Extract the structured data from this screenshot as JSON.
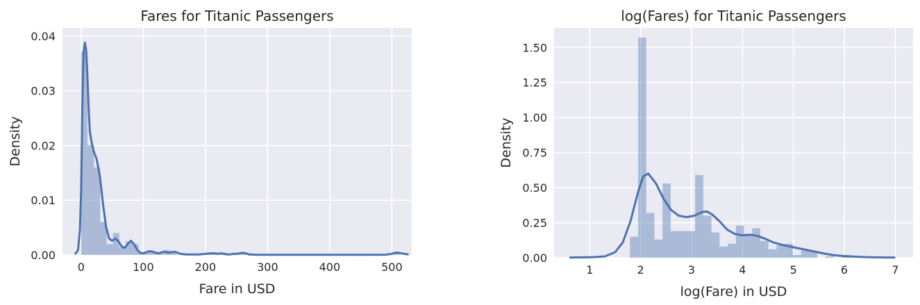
{
  "chart_data": [
    {
      "type": "histogram-kde",
      "title": "Fares for Titanic Passengers",
      "xlabel": "Fare in USD",
      "ylabel": "Density",
      "xlim": [
        -30,
        532
      ],
      "ylim": [
        0,
        0.0415
      ],
      "xticks": [
        0,
        100,
        200,
        300,
        400,
        500
      ],
      "yticks": [
        0.0,
        0.01,
        0.02,
        0.03,
        0.04
      ],
      "ytick_labels": [
        "0.00",
        "0.01",
        "0.02",
        "0.03",
        "0.04"
      ],
      "grid": true,
      "bar_color": "#4c72b0",
      "line_color": "#4c72b0",
      "hist": {
        "edges": [
          0,
          10.25,
          20.5,
          30.75,
          41,
          51.25,
          61.5,
          71.75,
          82,
          92.25,
          102.5,
          112.75,
          123,
          133.25,
          143.5,
          153.75,
          164,
          174.25,
          184.5,
          194.75,
          205,
          215.25,
          225.5,
          235.75,
          246,
          256.25,
          266.5,
          276.75,
          287,
          297.25,
          307.5,
          317.75,
          328,
          338.25,
          348.5,
          358.75,
          369,
          379.25,
          389.5,
          399.75,
          410,
          420.25,
          430.5,
          440.75,
          451,
          461.25,
          471.5,
          481.75,
          492,
          502.25,
          512.5
        ],
        "density": [
          0.0372,
          0.0201,
          0.016,
          0.006,
          0.002,
          0.004,
          0.0014,
          0.0025,
          0.002,
          0.0004,
          0.0006,
          0.0005,
          0.0004,
          0.0009,
          0.0004,
          0,
          0,
          0,
          0,
          0,
          0.0002,
          0.0003,
          0.0004,
          0.0001,
          0.0003,
          0.0004,
          0,
          0,
          0,
          0,
          0,
          0,
          0,
          0,
          0,
          0,
          0,
          0,
          0,
          0,
          0,
          0,
          0,
          0,
          0,
          0,
          0,
          0,
          0.0003,
          0.0003
        ]
      },
      "kde": {
        "x": [
          -10,
          -5,
          -2,
          0,
          2,
          4,
          6,
          8,
          10,
          12,
          14,
          17,
          20,
          25,
          30,
          35,
          40,
          45,
          50,
          55,
          60,
          65,
          70,
          75,
          80,
          85,
          90,
          95,
          100,
          105,
          110,
          115,
          120,
          125,
          130,
          135,
          140,
          145,
          150,
          155,
          160,
          170,
          180,
          190,
          200,
          210,
          215,
          220,
          225,
          230,
          235,
          240,
          245,
          250,
          255,
          260,
          265,
          270,
          280,
          300,
          350,
          400,
          450,
          490,
          500,
          505,
          510,
          515,
          520,
          527
        ],
        "y": [
          0.0001,
          0.0009,
          0.0045,
          0.012,
          0.027,
          0.037,
          0.0388,
          0.0375,
          0.033,
          0.027,
          0.0225,
          0.0205,
          0.019,
          0.0175,
          0.0145,
          0.0095,
          0.0052,
          0.003,
          0.0026,
          0.003,
          0.0025,
          0.0016,
          0.0013,
          0.002,
          0.0026,
          0.002,
          0.001,
          0.0004,
          0.0003,
          0.0005,
          0.0007,
          0.0006,
          0.0004,
          0.0003,
          0.0005,
          0.0006,
          0.0004,
          0.0005,
          0.0006,
          0.0004,
          0.0002,
          0.0001,
          0.0001,
          0.0001,
          0.0002,
          0.0003,
          0.0003,
          0.0002,
          0.0003,
          0.0002,
          0.0001,
          0.0001,
          0.0002,
          0.0002,
          0.0003,
          0.0004,
          0.0003,
          0.0001,
          5e-05,
          2e-05,
          2e-05,
          2e-05,
          2e-05,
          5e-05,
          0.0002,
          0.0004,
          0.0004,
          0.0003,
          0.0002,
          0.0001
        ]
      }
    },
    {
      "type": "histogram-kde",
      "title": "log(Fares) for Titanic Passengers",
      "xlabel": "log(Fare) in USD",
      "ylabel": "Density",
      "xlim": [
        0.3,
        7.35
      ],
      "ylim": [
        0,
        1.64
      ],
      "xticks": [
        1,
        2,
        3,
        4,
        5,
        6,
        7
      ],
      "yticks": [
        0.0,
        0.25,
        0.5,
        0.75,
        1.0,
        1.25,
        1.5
      ],
      "ytick_labels": [
        "0.00",
        "0.25",
        "0.50",
        "0.75",
        "1.00",
        "1.25",
        "1.50"
      ],
      "grid": true,
      "bar_color": "#4c72b0",
      "line_color": "#4c72b0",
      "hist": {
        "edges": [
          1.79,
          1.95,
          2.11,
          2.27,
          2.43,
          2.59,
          2.75,
          2.91,
          3.07,
          3.23,
          3.39,
          3.55,
          3.71,
          3.87,
          4.03,
          4.19,
          4.35,
          4.51,
          4.67,
          4.83,
          4.99,
          5.15,
          5.31,
          5.47,
          5.63,
          5.79,
          5.95,
          6.11,
          6.27
        ],
        "density": [
          0.15,
          1.57,
          0.32,
          0.13,
          0.53,
          0.19,
          0.19,
          0.19,
          0.59,
          0.3,
          0.18,
          0.08,
          0.1,
          0.23,
          0.17,
          0.21,
          0.12,
          0.06,
          0.09,
          0.1,
          0.02,
          0.05,
          0.05,
          0,
          0.01,
          0,
          0.02,
          0
        ]
      },
      "kde": {
        "x": [
          0.6,
          0.9,
          1.1,
          1.3,
          1.5,
          1.65,
          1.8,
          1.95,
          2.05,
          2.15,
          2.3,
          2.45,
          2.6,
          2.75,
          2.9,
          3.05,
          3.2,
          3.3,
          3.4,
          3.55,
          3.7,
          3.85,
          4.0,
          4.15,
          4.3,
          4.45,
          4.6,
          4.8,
          5.0,
          5.2,
          5.4,
          5.6,
          5.8,
          6.0,
          6.2,
          6.4,
          6.6,
          6.8,
          7.0
        ],
        "y": [
          0.002,
          0.003,
          0.005,
          0.01,
          0.04,
          0.11,
          0.26,
          0.47,
          0.58,
          0.6,
          0.53,
          0.42,
          0.34,
          0.3,
          0.29,
          0.3,
          0.325,
          0.33,
          0.31,
          0.26,
          0.2,
          0.17,
          0.16,
          0.165,
          0.155,
          0.135,
          0.11,
          0.09,
          0.075,
          0.06,
          0.045,
          0.03,
          0.018,
          0.012,
          0.008,
          0.005,
          0.003,
          0.002,
          0.002
        ]
      }
    }
  ]
}
